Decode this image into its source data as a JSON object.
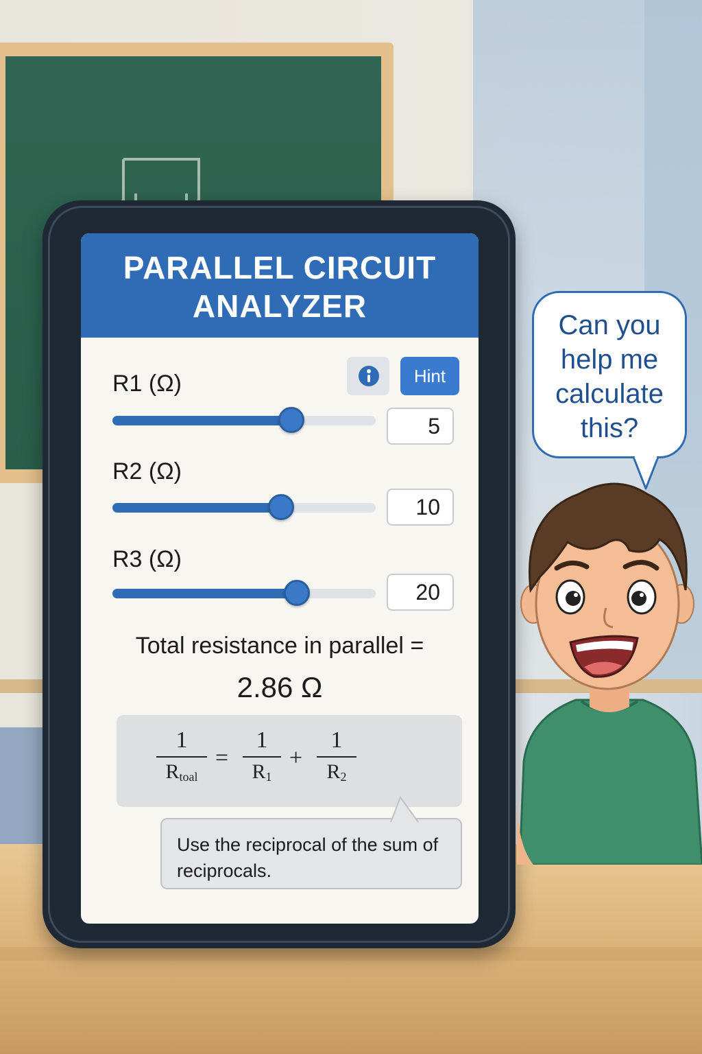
{
  "app": {
    "title": "PARALLEL CIRCUIT\nANALYZER",
    "hint_button": "Hint",
    "info_icon": "info-icon"
  },
  "resistors": [
    {
      "label": "R1 (Ω)",
      "value": "5",
      "slider_fraction": 0.68
    },
    {
      "label": "R2 (Ω)",
      "value": "10",
      "slider_fraction": 0.64
    },
    {
      "label": "R3 (Ω)",
      "value": "20",
      "slider_fraction": 0.7
    }
  ],
  "result": {
    "label": "Total resistance in parallel =",
    "value": "2.86 Ω"
  },
  "formula": {
    "lhs_num": "1",
    "lhs_den": "R",
    "lhs_den_sub": "toal",
    "equals": "=",
    "t1_num": "1",
    "t1_den": "R",
    "t1_den_sub": "1",
    "plus": "+",
    "t2_num": "1",
    "t2_den": "R",
    "t2_den_sub": "2"
  },
  "hint_text": "Use the reciprocal of the sum of reciprocals.",
  "student_speech": "Can you\nhelp me\ncalculate\nthis?",
  "colors": {
    "accent": "#2f6cb5",
    "screen_bg": "#f7f6f1",
    "chalkboard": "#2f6552",
    "shirt": "#3f8f6c"
  }
}
